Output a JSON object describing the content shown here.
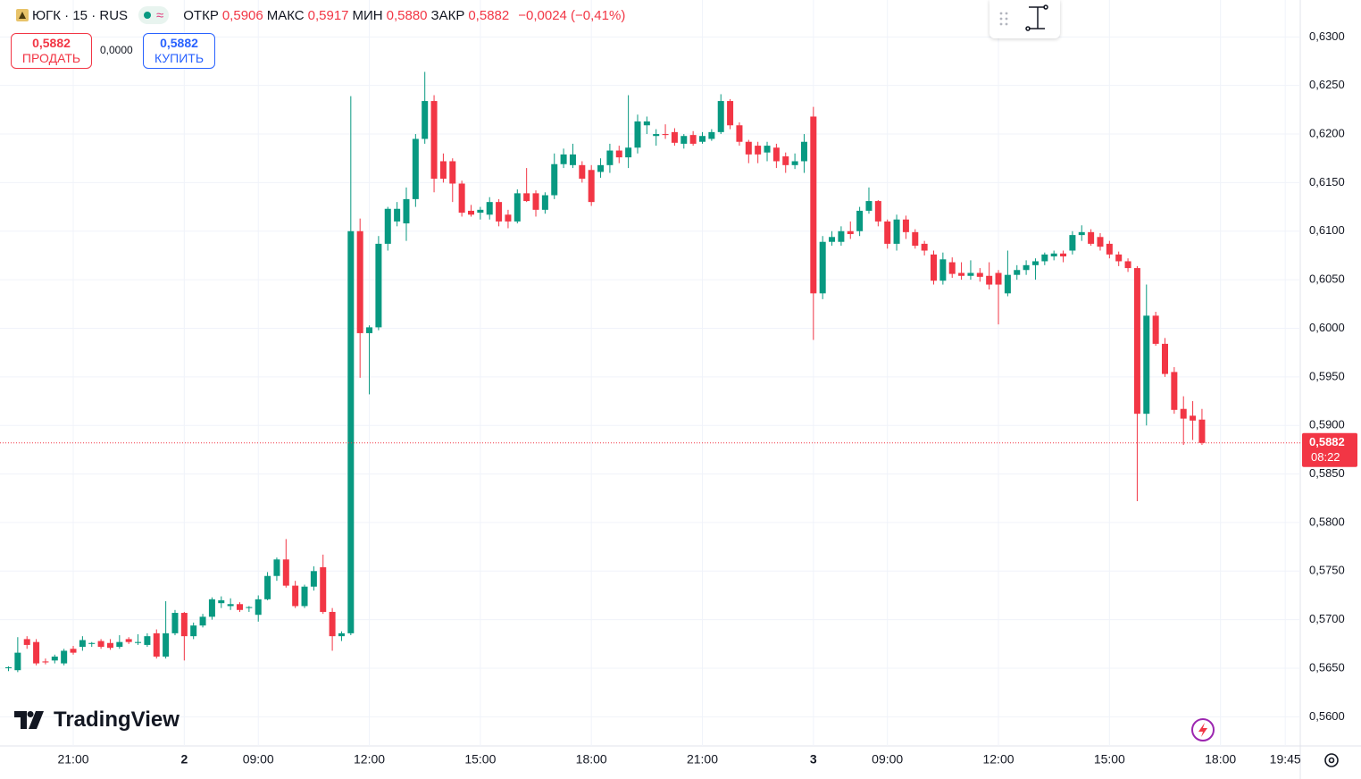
{
  "header": {
    "symbol": "ЮГК · 15 · RUS",
    "open_label": "ОТКР",
    "open": "0,5906",
    "high_label": "МАКС",
    "high": "0,5917",
    "low_label": "МИН",
    "low": "0,5880",
    "close_label": "ЗАКР",
    "close": "0,5882",
    "change": "−0,0024 (−0,41%)"
  },
  "trade": {
    "sell_price": "0,5882",
    "sell_label": "ПРОДАТЬ",
    "spread": "0,0000",
    "buy_price": "0,5882",
    "buy_label": "КУПИТЬ"
  },
  "logo": "TradingView",
  "chart_data": {
    "type": "candlestick",
    "up_color": "#089981",
    "down_color": "#f23645",
    "grid": true,
    "price_tag": {
      "label": "0,5882",
      "timer": "08:22"
    },
    "categories": [
      null,
      null,
      null,
      null,
      null,
      null,
      null,
      "21:00",
      null,
      null,
      null,
      null,
      null,
      null,
      null,
      null,
      null,
      null,
      null,
      "2",
      null,
      null,
      null,
      null,
      null,
      null,
      null,
      "09:00",
      null,
      null,
      null,
      null,
      null,
      null,
      null,
      null,
      null,
      null,
      null,
      "12:00",
      null,
      null,
      null,
      null,
      null,
      null,
      null,
      null,
      null,
      null,
      null,
      "15:00",
      null,
      null,
      null,
      null,
      null,
      null,
      null,
      null,
      null,
      null,
      null,
      "18:00",
      null,
      null,
      null,
      null,
      null,
      null,
      null,
      null,
      null,
      null,
      null,
      "21:00",
      null,
      null,
      null,
      null,
      null,
      null,
      null,
      null,
      null,
      null,
      null,
      "3",
      null,
      null,
      null,
      null,
      null,
      null,
      null,
      "09:00",
      null,
      null,
      null,
      null,
      null,
      null,
      null,
      null,
      null,
      null,
      null,
      "12:00",
      null,
      null,
      null,
      null,
      null,
      null,
      null,
      null,
      null,
      null,
      null,
      "15:00",
      null,
      null,
      null,
      null,
      null,
      null,
      null,
      null,
      null,
      null,
      null,
      "18:00",
      null,
      null,
      null,
      null,
      null,
      null,
      "19:45",
      null
    ],
    "open": [
      0.565,
      0.5648,
      0.568,
      0.5677,
      0.5657,
      0.5658,
      0.5655,
      0.567,
      0.5672,
      0.5675,
      0.5678,
      0.5676,
      0.5672,
      0.568,
      0.5676,
      0.5674,
      0.5686,
      0.5662,
      0.5686,
      0.5707,
      0.5683,
      0.5694,
      0.5703,
      0.5717,
      0.5714,
      0.5716,
      0.5712,
      0.5705,
      0.5721,
      0.5745,
      0.5762,
      0.5735,
      0.5714,
      0.5734,
      0.5754,
      0.5708,
      0.5683,
      0.5686,
      0.61,
      0.5995,
      0.6001,
      0.6087,
      0.611,
      0.6108,
      0.6133,
      0.6195,
      0.6234,
      0.6172,
      0.6172,
      0.6149,
      0.6121,
      0.6119,
      0.6117,
      0.613,
      0.6117,
      0.611,
      0.6139,
      0.6139,
      0.6122,
      0.6137,
      0.6169,
      0.6168,
      0.6168,
      0.6163,
      0.6161,
      0.6168,
      0.6183,
      0.6176,
      0.6186,
      0.6209,
      0.6198,
      0.62,
      0.6202,
      0.619,
      0.6199,
      0.6192,
      0.6195,
      0.6202,
      0.6234,
      0.6209,
      0.6192,
      0.6188,
      0.6181,
      0.6186,
      0.6177,
      0.6168,
      0.6172,
      0.6218,
      0.6036,
      0.6089,
      0.6089,
      0.61,
      0.61,
      0.6121,
      0.6131,
      0.611,
      0.6087,
      0.6112,
      0.6099,
      0.6087,
      0.6076,
      0.6049,
      0.6068,
      0.6057,
      0.6054,
      0.6057,
      0.6054,
      0.6057,
      0.6036,
      0.6055,
      0.606,
      0.6065,
      0.6069,
      0.6074,
      0.6077,
      0.608,
      0.6096,
      0.6099,
      0.6094,
      0.6087,
      0.6076,
      0.6069,
      0.6062,
      0.5912,
      0.6013,
      0.5984,
      0.5955,
      0.5917,
      0.591,
      0.5906,
      null,
      null,
      null,
      null,
      null,
      null,
      null,
      null,
      null,
      null
    ],
    "high": [
      0.5652,
      0.5682,
      0.5683,
      0.568,
      0.566,
      0.5664,
      0.567,
      0.5673,
      0.5683,
      0.5677,
      0.568,
      0.568,
      0.5684,
      0.5682,
      0.5685,
      0.5686,
      0.569,
      0.5719,
      0.571,
      0.5708,
      0.5697,
      0.5706,
      0.5723,
      0.5724,
      0.5722,
      0.5718,
      0.5714,
      0.5725,
      0.5749,
      0.5764,
      0.5783,
      0.574,
      0.5736,
      0.5755,
      0.5767,
      0.5712,
      0.5688,
      0.6239,
      0.6113,
      0.6003,
      0.6095,
      0.6125,
      0.613,
      0.6145,
      0.62,
      0.6264,
      0.624,
      0.618,
      0.6175,
      0.6152,
      0.6127,
      0.6125,
      0.6135,
      0.6133,
      0.6122,
      0.6143,
      0.6165,
      0.6142,
      0.614,
      0.618,
      0.6185,
      0.619,
      0.6172,
      0.6168,
      0.6175,
      0.619,
      0.6188,
      0.624,
      0.622,
      0.6218,
      0.6205,
      0.621,
      0.6206,
      0.62,
      0.6203,
      0.6202,
      0.6205,
      0.6241,
      0.6236,
      0.6212,
      0.6194,
      0.6192,
      0.6192,
      0.619,
      0.6181,
      0.618,
      0.62,
      0.6228,
      0.6095,
      0.61,
      0.6105,
      0.611,
      0.6125,
      0.6145,
      0.6132,
      0.6112,
      0.6117,
      0.6116,
      0.6102,
      0.609,
      0.608,
      0.6078,
      0.6073,
      0.6068,
      0.607,
      0.6062,
      0.6068,
      0.606,
      0.608,
      0.6065,
      0.607,
      0.6072,
      0.6078,
      0.608,
      0.608,
      0.61,
      0.6106,
      0.6102,
      0.6098,
      0.609,
      0.6079,
      0.6072,
      0.6064,
      0.6045,
      0.6017,
      0.599,
      0.596,
      0.593,
      0.5925,
      0.5917,
      null,
      null,
      null,
      null,
      null,
      null,
      null,
      null,
      null,
      null
    ],
    "low": [
      0.5647,
      0.5646,
      0.567,
      0.5653,
      0.5654,
      0.5655,
      0.5653,
      0.5664,
      0.5668,
      0.5672,
      0.567,
      0.5669,
      0.567,
      0.5675,
      0.5674,
      0.5672,
      0.566,
      0.566,
      0.5684,
      0.5658,
      0.568,
      0.5692,
      0.57,
      0.5712,
      0.571,
      0.5708,
      0.5708,
      0.5698,
      0.572,
      0.574,
      0.5733,
      0.5712,
      0.5712,
      0.573,
      0.5706,
      0.5668,
      0.5678,
      0.5684,
      0.5949,
      0.5932,
      0.5998,
      0.608,
      0.6105,
      0.609,
      0.6125,
      0.619,
      0.614,
      0.615,
      0.613,
      0.6115,
      0.6115,
      0.6112,
      0.6112,
      0.6105,
      0.6103,
      0.6108,
      0.613,
      0.6115,
      0.6118,
      0.6133,
      0.6165,
      0.6165,
      0.615,
      0.6126,
      0.6155,
      0.616,
      0.617,
      0.6165,
      0.618,
      0.62,
      0.6188,
      0.6195,
      0.6188,
      0.6185,
      0.6188,
      0.619,
      0.6193,
      0.62,
      0.6205,
      0.6188,
      0.617,
      0.617,
      0.6172,
      0.6165,
      0.616,
      0.6164,
      0.616,
      0.5988,
      0.603,
      0.6085,
      0.6085,
      0.6092,
      0.6095,
      0.6118,
      0.6105,
      0.6082,
      0.608,
      0.6092,
      0.6082,
      0.6075,
      0.6045,
      0.6045,
      0.6052,
      0.605,
      0.605,
      0.6048,
      0.604,
      0.6004,
      0.6033,
      0.605,
      0.6055,
      0.605,
      0.6065,
      0.607,
      0.6068,
      0.6076,
      0.609,
      0.6085,
      0.608,
      0.6072,
      0.6064,
      0.6058,
      0.5822,
      0.59,
      0.5982,
      0.595,
      0.5912,
      0.588,
      0.5885,
      0.588,
      null,
      null,
      null,
      null,
      null,
      null,
      null,
      null,
      null,
      null
    ],
    "close": [
      0.5651,
      0.5666,
      0.5674,
      0.5655,
      0.5656,
      0.5662,
      0.5668,
      0.5666,
      0.5679,
      0.5676,
      0.5672,
      0.5671,
      0.5677,
      0.5677,
      0.5677,
      0.5683,
      0.5662,
      0.5686,
      0.5707,
      0.5683,
      0.5694,
      0.5703,
      0.5721,
      0.572,
      0.5716,
      0.571,
      0.5713,
      0.5721,
      0.5745,
      0.5762,
      0.5735,
      0.5714,
      0.5734,
      0.575,
      0.5708,
      0.5683,
      0.5686,
      0.61,
      0.5995,
      0.6001,
      0.6087,
      0.6123,
      0.6123,
      0.6133,
      0.6195,
      0.6234,
      0.6154,
      0.6154,
      0.6149,
      0.6119,
      0.6117,
      0.6122,
      0.613,
      0.611,
      0.611,
      0.6139,
      0.6131,
      0.6122,
      0.6137,
      0.6169,
      0.6179,
      0.6179,
      0.6154,
      0.613,
      0.6168,
      0.6183,
      0.6176,
      0.6186,
      0.6213,
      0.6213,
      0.62,
      0.6199,
      0.6191,
      0.6198,
      0.619,
      0.6198,
      0.6202,
      0.6234,
      0.6209,
      0.6192,
      0.6179,
      0.6179,
      0.6188,
      0.6172,
      0.6168,
      0.6172,
      0.6192,
      0.6036,
      0.6089,
      0.6094,
      0.61,
      0.6097,
      0.6121,
      0.6131,
      0.611,
      0.6087,
      0.6112,
      0.6099,
      0.6085,
      0.608,
      0.6049,
      0.6071,
      0.6056,
      0.6054,
      0.6057,
      0.6053,
      0.6045,
      0.6045,
      0.6055,
      0.606,
      0.6065,
      0.6069,
      0.6076,
      0.6077,
      0.6074,
      0.6096,
      0.6099,
      0.6087,
      0.6084,
      0.6076,
      0.6069,
      0.6062,
      0.5912,
      0.6013,
      0.5984,
      0.5953,
      0.5916,
      0.5907,
      0.5905,
      0.5882,
      null,
      null,
      null,
      null,
      null,
      null,
      null,
      null,
      null,
      null
    ],
    "ylim": [
      0.557,
      0.6338
    ],
    "yticks": [
      {
        "value": 0.56,
        "label": "0,5600"
      },
      {
        "value": 0.565,
        "label": "0,5650"
      },
      {
        "value": 0.57,
        "label": "0,5700"
      },
      {
        "value": 0.575,
        "label": "0,5750"
      },
      {
        "value": 0.58,
        "label": "0,5800"
      },
      {
        "value": 0.585,
        "label": "0,5850"
      },
      {
        "value": 0.59,
        "label": "0,5900"
      },
      {
        "value": 0.595,
        "label": "0,5950"
      },
      {
        "value": 0.6,
        "label": "0,6000"
      },
      {
        "value": 0.605,
        "label": "0,6050"
      },
      {
        "value": 0.61,
        "label": "0,6100"
      },
      {
        "value": 0.615,
        "label": "0,6150"
      },
      {
        "value": 0.62,
        "label": "0,6200"
      },
      {
        "value": 0.625,
        "label": "0,6250"
      },
      {
        "value": 0.63,
        "label": "0,6300"
      }
    ]
  }
}
